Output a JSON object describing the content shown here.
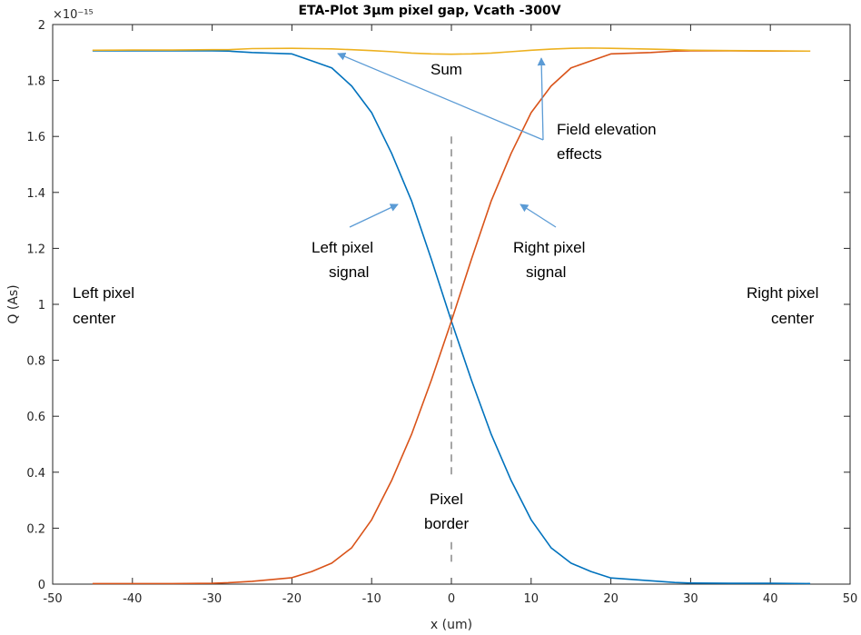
{
  "chart_data": {
    "type": "line",
    "title": "ETA-Plot 3µm pixel gap, Vcath -300V",
    "xlabel": "x (um)",
    "ylabel": "Q (As)",
    "y_exponent": "×10⁻¹⁵",
    "xlim": [
      -50,
      50
    ],
    "ylim": [
      0,
      2
    ],
    "x_ticks": [
      "-50",
      "-40",
      "-30",
      "-20",
      "-10",
      "0",
      "10",
      "20",
      "30",
      "40",
      "50"
    ],
    "y_ticks": [
      "0",
      "0.2",
      "0.4",
      "0.6",
      "0.8",
      "1",
      "1.2",
      "1.4",
      "1.6",
      "1.8",
      "2"
    ],
    "x": [
      -45,
      -40,
      -35,
      -30,
      -28,
      -25,
      -20,
      -17.5,
      -15,
      -12.5,
      -10,
      -7.5,
      -5,
      -2.5,
      0,
      2.5,
      5,
      7.5,
      10,
      12.5,
      15,
      17.5,
      20,
      25,
      28,
      30,
      35,
      40,
      45
    ],
    "series": [
      {
        "values": [
          1.906,
          1.906,
          1.906,
          1.906,
          1.905,
          1.9,
          1.895,
          1.87,
          1.845,
          1.78,
          1.685,
          1.54,
          1.37,
          1.16,
          0.94,
          0.73,
          0.535,
          0.37,
          0.23,
          0.13,
          0.075,
          0.045,
          0.022,
          0.012,
          0.006,
          0.004,
          0.003,
          0.003,
          0.002
        ],
        "color": "#0072BD"
      },
      {
        "values": [
          0.002,
          0.002,
          0.002,
          0.003,
          0.005,
          0.01,
          0.023,
          0.045,
          0.075,
          0.13,
          0.23,
          0.37,
          0.535,
          0.73,
          0.94,
          1.16,
          1.37,
          1.54,
          1.685,
          1.78,
          1.845,
          1.87,
          1.895,
          1.9,
          1.905,
          1.906,
          1.906,
          1.905,
          1.905
        ],
        "color": "#D95319"
      },
      {
        "values": [
          1.908,
          1.909,
          1.909,
          1.91,
          1.91,
          1.914,
          1.915,
          1.914,
          1.913,
          1.91,
          1.907,
          1.903,
          1.898,
          1.895,
          1.894,
          1.895,
          1.898,
          1.903,
          1.908,
          1.912,
          1.915,
          1.916,
          1.915,
          1.912,
          1.91,
          1.908,
          1.907,
          1.906,
          1.905
        ],
        "color": "#EDB120"
      }
    ],
    "grid": false,
    "legend": "none",
    "annotations": {
      "sum": "Sum",
      "field1": "Field elevation",
      "field2": "effects",
      "left_signal1": "Left pixel",
      "left_signal2": "signal",
      "right_signal1": "Right pixel",
      "right_signal2": "signal",
      "left_center1": "Left pixel",
      "left_center2": "center",
      "right_center1": "Right pixel",
      "right_center2": "center",
      "border1": "Pixel",
      "border2": "border"
    },
    "arrow_color": "#5B9BD5",
    "border_line_color": "#A6A6A6"
  }
}
